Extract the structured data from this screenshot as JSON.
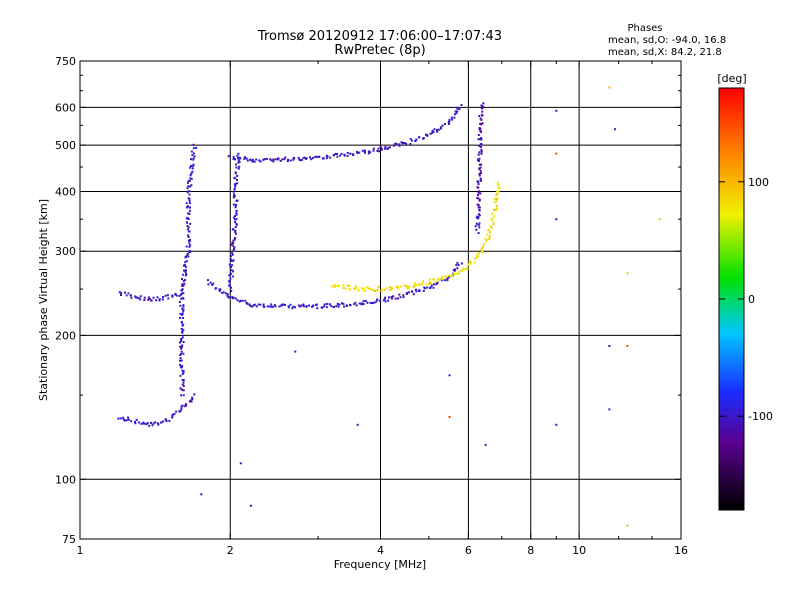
{
  "header": {
    "title_line1": "Tromsø 20120912 17:06:00–17:07:43",
    "title_line2": "RwPretec (8p)"
  },
  "stats": {
    "heading": "Phases",
    "line_o": "mean, sd,O:  -94.0, 16.8",
    "line_x": "mean, sd,X:  84.2, 21.8"
  },
  "colorbar": {
    "label": "[deg]",
    "ticks": [
      {
        "value": 100,
        "label": "100"
      },
      {
        "value": 0,
        "label": "0"
      },
      {
        "value": -100,
        "label": "-100"
      }
    ],
    "range": [
      -180,
      180
    ]
  },
  "chart_data": {
    "type": "scatter",
    "title": "Tromsø 20120912 17:06:00–17:07:43",
    "subtitle": "RwPretec (8p)",
    "xlabel": "Frequency [MHz]",
    "ylabel": "Stationary phase Virtual Height [km]",
    "x_scale": "log",
    "y_scale": "log",
    "xlim": [
      1,
      16
    ],
    "ylim": [
      75,
      750
    ],
    "x_ticks": [
      1,
      2,
      4,
      6,
      8,
      10,
      16
    ],
    "y_ticks": [
      75,
      100,
      200,
      300,
      400,
      500,
      600,
      750
    ],
    "x_tick_labels": [
      "1",
      "2",
      "4",
      "6",
      "8",
      "10",
      "16"
    ],
    "y_tick_labels": [
      "75",
      "100",
      "200",
      "300",
      "400",
      "500",
      "600",
      "750"
    ],
    "x_major_grid": [
      2,
      4,
      6,
      8,
      10
    ],
    "y_major_grid": [
      100,
      200,
      300,
      400,
      500,
      600
    ],
    "grid": true,
    "color_by": "phase (deg)",
    "traces": [
      {
        "kind": "O-trace F-layer",
        "phase": -100,
        "points": [
          [
            1.8,
            260
          ],
          [
            1.9,
            248
          ],
          [
            2.0,
            240
          ],
          [
            2.2,
            232
          ],
          [
            2.5,
            230
          ],
          [
            3.0,
            230
          ],
          [
            3.5,
            232
          ],
          [
            4.0,
            236
          ],
          [
            4.5,
            243
          ],
          [
            5.0,
            252
          ],
          [
            5.5,
            265
          ],
          [
            5.8,
            285
          ]
        ]
      },
      {
        "kind": "X-trace F-layer",
        "phase": 80,
        "points": [
          [
            3.2,
            255
          ],
          [
            3.6,
            250
          ],
          [
            4.0,
            250
          ],
          [
            4.5,
            252
          ],
          [
            5.0,
            258
          ],
          [
            5.5,
            266
          ],
          [
            6.0,
            278
          ],
          [
            6.4,
            300
          ],
          [
            6.7,
            340
          ],
          [
            6.9,
            420
          ]
        ]
      },
      {
        "kind": "O-trace 2F multi-hop",
        "phase": -100,
        "points": [
          [
            2.0,
            470
          ],
          [
            2.3,
            465
          ],
          [
            2.7,
            468
          ],
          [
            3.0,
            472
          ],
          [
            3.5,
            478
          ],
          [
            4.0,
            490
          ],
          [
            4.5,
            505
          ],
          [
            5.0,
            525
          ],
          [
            5.5,
            560
          ],
          [
            5.8,
            610
          ]
        ]
      },
      {
        "kind": "E/Es low trace",
        "phase": -100,
        "points": [
          [
            1.2,
            135
          ],
          [
            1.3,
            132
          ],
          [
            1.4,
            130
          ],
          [
            1.5,
            133
          ],
          [
            1.6,
            140
          ],
          [
            1.7,
            150
          ]
        ]
      },
      {
        "kind": "F1 cusp",
        "phase": -100,
        "points": [
          [
            1.2,
            245
          ],
          [
            1.3,
            240
          ],
          [
            1.4,
            238
          ],
          [
            1.5,
            240
          ],
          [
            1.6,
            245
          ]
        ]
      },
      {
        "kind": "Vertical spread near 1.6 MHz",
        "phase": -100,
        "points": [
          [
            1.6,
            150
          ],
          [
            1.6,
            200
          ],
          [
            1.6,
            250
          ],
          [
            1.65,
            300
          ],
          [
            1.65,
            400
          ],
          [
            1.7,
            500
          ]
        ]
      },
      {
        "kind": "Vertical spread near 2 MHz",
        "phase": -100,
        "points": [
          [
            2.0,
            250
          ],
          [
            2.02,
            300
          ],
          [
            2.05,
            350
          ],
          [
            2.05,
            420
          ],
          [
            2.08,
            480
          ]
        ]
      },
      {
        "kind": "Vertical spike near 6.3 MHz",
        "phase": -110,
        "points": [
          [
            6.25,
            330
          ],
          [
            6.3,
            400
          ],
          [
            6.32,
            480
          ],
          [
            6.35,
            560
          ],
          [
            6.4,
            620
          ]
        ]
      }
    ],
    "isolated_points": [
      {
        "x": 1.75,
        "y": 93,
        "phase": -100
      },
      {
        "x": 2.2,
        "y": 88,
        "phase": -100
      },
      {
        "x": 2.1,
        "y": 108,
        "phase": -100
      },
      {
        "x": 2.7,
        "y": 185,
        "phase": -110
      },
      {
        "x": 3.6,
        "y": 130,
        "phase": -100
      },
      {
        "x": 5.5,
        "y": 165,
        "phase": -100
      },
      {
        "x": 5.5,
        "y": 135,
        "phase": 150
      },
      {
        "x": 6.5,
        "y": 118,
        "phase": -100
      },
      {
        "x": 9.0,
        "y": 130,
        "phase": -100
      },
      {
        "x": 9.0,
        "y": 350,
        "phase": -100
      },
      {
        "x": 9.0,
        "y": 590,
        "phase": -100
      },
      {
        "x": 9.0,
        "y": 480,
        "phase": 150
      },
      {
        "x": 11.5,
        "y": 660,
        "phase": 100
      },
      {
        "x": 11.5,
        "y": 190,
        "phase": -120
      },
      {
        "x": 11.5,
        "y": 140,
        "phase": -100
      },
      {
        "x": 11.8,
        "y": 540,
        "phase": -100
      },
      {
        "x": 12.5,
        "y": 190,
        "phase": 150
      },
      {
        "x": 12.5,
        "y": 270,
        "phase": 60
      },
      {
        "x": 12.5,
        "y": 80,
        "phase": 50
      },
      {
        "x": 14.5,
        "y": 350,
        "phase": 90
      }
    ]
  }
}
